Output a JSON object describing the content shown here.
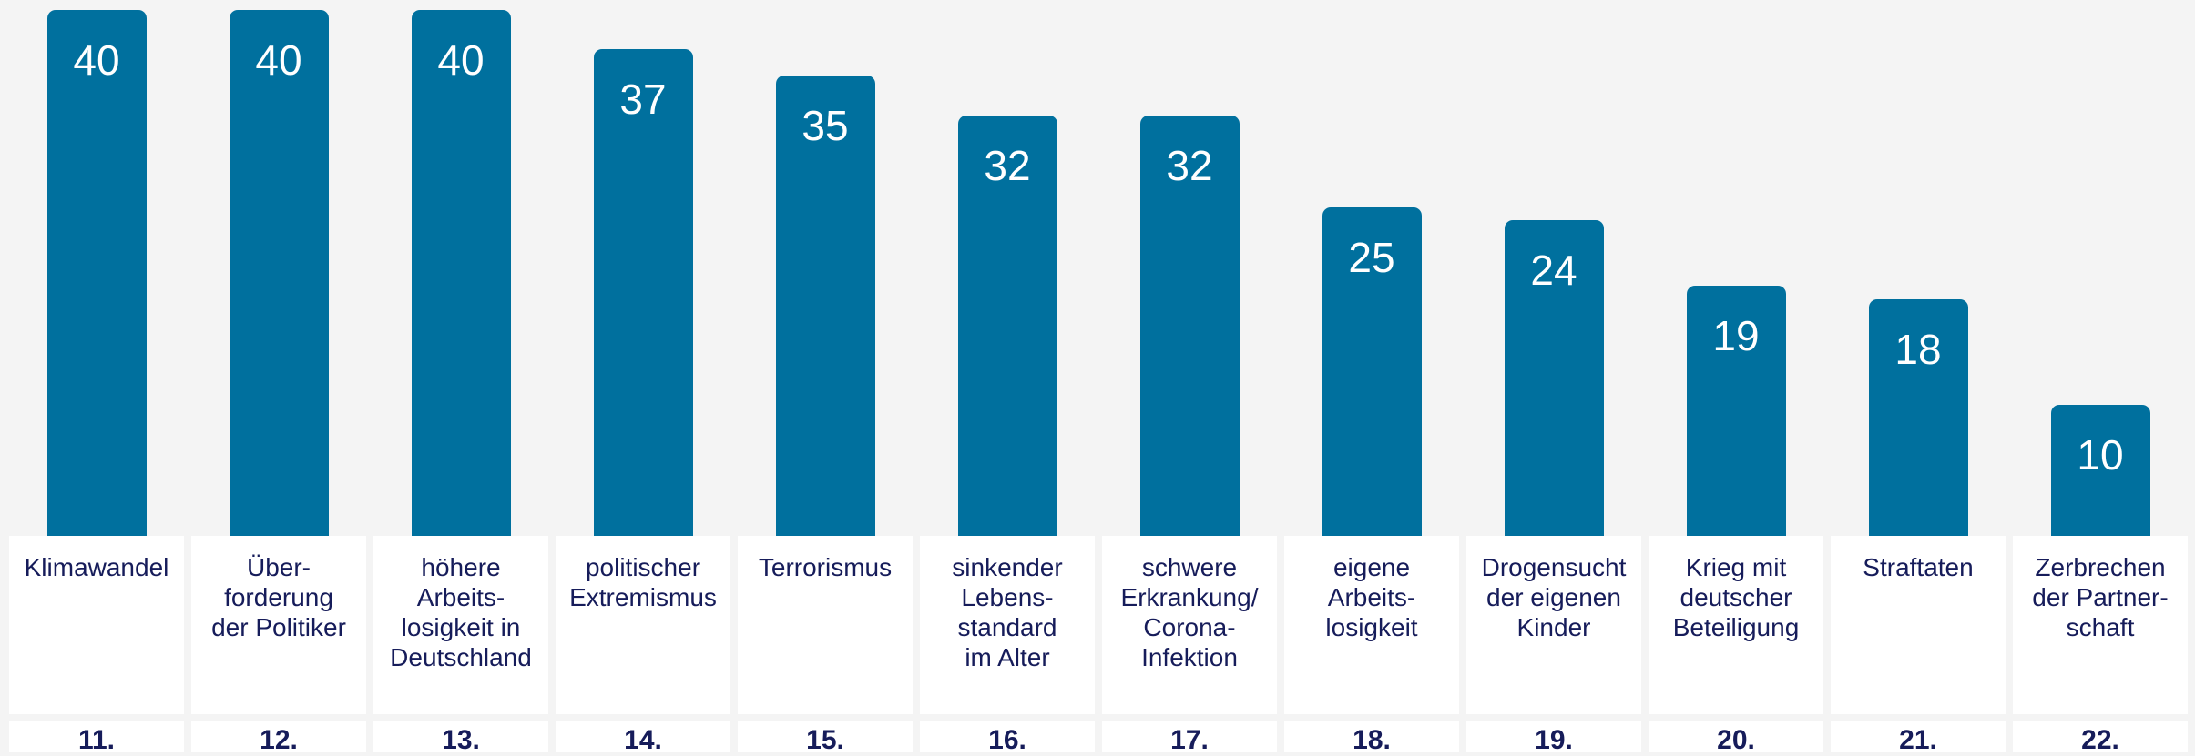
{
  "chart_data": {
    "type": "bar",
    "categories": [
      "Klimawandel",
      "Über-\nforderung\nder Politiker",
      "höhere\nArbeits-\nlosigkeit in\nDeutschland",
      "politischer\nExtremismus",
      "Terrorismus",
      "sinkender\nLebens-\nstandard\nim Alter",
      "schwere\nErkrankung/\nCorona-\nInfektion",
      "eigene\nArbeits-\nlosigkeit",
      "Drogensucht\nder eigenen\nKinder",
      "Krieg mit\ndeutscher\nBeteiligung",
      "Straftaten",
      "Zerbrechen\nder Partner-\nschaft"
    ],
    "values": [
      40,
      40,
      40,
      37,
      35,
      32,
      32,
      25,
      24,
      19,
      18,
      10
    ],
    "ranks": [
      "11.",
      "12.",
      "13.",
      "14.",
      "15.",
      "16.",
      "17.",
      "18.",
      "19.",
      "20.",
      "21.",
      "22."
    ],
    "color": "#00709e"
  }
}
